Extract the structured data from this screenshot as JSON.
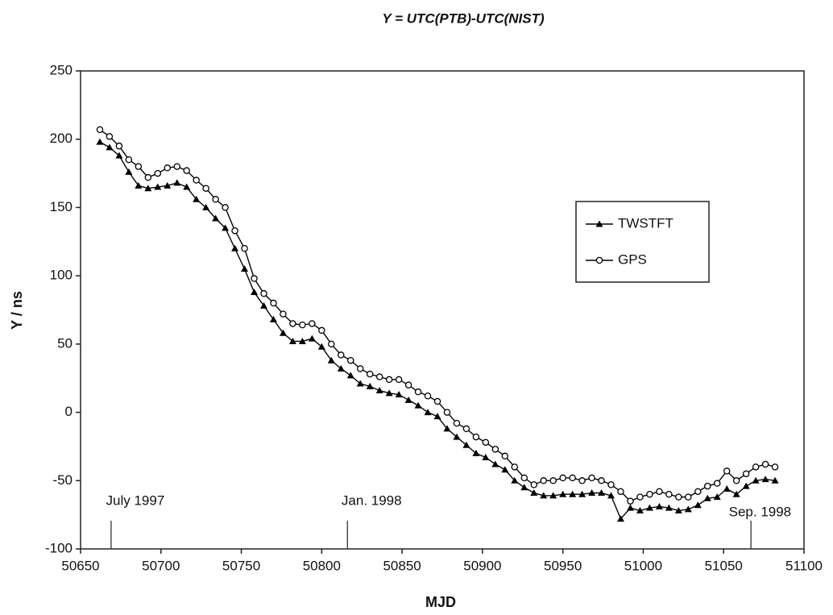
{
  "chart_data": {
    "type": "line",
    "title": "Y = UTC(PTB)-UTC(NIST)",
    "xlabel": "MJD",
    "ylabel": "Y / ns",
    "xlim": [
      50650,
      51100
    ],
    "xticks": [
      50650,
      50700,
      50750,
      50800,
      50850,
      50900,
      50950,
      51000,
      51050,
      51100
    ],
    "ylim": [
      -100,
      250
    ],
    "yticks": [
      -100,
      -50,
      0,
      50,
      100,
      150,
      200,
      250
    ],
    "legend": "right",
    "x": [
      50662,
      50668,
      50674,
      50680,
      50686,
      50692,
      50698,
      50704,
      50710,
      50716,
      50722,
      50728,
      50734,
      50740,
      50746,
      50752,
      50758,
      50764,
      50770,
      50776,
      50782,
      50788,
      50794,
      50800,
      50806,
      50812,
      50818,
      50824,
      50830,
      50836,
      50842,
      50848,
      50854,
      50860,
      50866,
      50872,
      50878,
      50884,
      50890,
      50896,
      50902,
      50908,
      50914,
      50920,
      50926,
      50932,
      50938,
      50944,
      50950,
      50956,
      50962,
      50968,
      50974,
      50980,
      50986,
      50992,
      50998,
      51004,
      51010,
      51016,
      51022,
      51028,
      51034,
      51040,
      51046,
      51052,
      51058,
      51064,
      51070,
      51076,
      51082
    ],
    "series": [
      {
        "name": "TWSTFT",
        "color": "#000000",
        "marker": "filled-triangle",
        "values": [
          198,
          194,
          188,
          176,
          166,
          164,
          165,
          166,
          168,
          165,
          156,
          150,
          142,
          135,
          120,
          105,
          88,
          78,
          68,
          58,
          52,
          52,
          54,
          48,
          38,
          32,
          27,
          21,
          19,
          16,
          14,
          13,
          9,
          5,
          0,
          -3,
          -12,
          -18,
          -24,
          -30,
          -33,
          -38,
          -42,
          -50,
          -55,
          -59,
          -61,
          -61,
          -60,
          -60,
          -60,
          -59,
          -59,
          -61,
          -78,
          -70,
          -72,
          -70,
          -69,
          -70,
          -72,
          -71,
          -68,
          -63,
          -62,
          -56,
          -60,
          -54,
          -50,
          -49,
          -50
        ]
      },
      {
        "name": "GPS",
        "color": "#000000",
        "marker": "open-circle",
        "values": [
          207,
          202,
          195,
          185,
          180,
          172,
          175,
          179,
          180,
          177,
          170,
          164,
          156,
          150,
          133,
          120,
          98,
          87,
          80,
          72,
          65,
          64,
          65,
          60,
          50,
          42,
          38,
          32,
          28,
          26,
          24,
          24,
          20,
          15,
          12,
          8,
          0,
          -8,
          -12,
          -18,
          -22,
          -27,
          -32,
          -40,
          -48,
          -53,
          -50,
          -50,
          -48,
          -48,
          -50,
          -48,
          -50,
          -53,
          -58,
          -65,
          -62,
          -60,
          -58,
          -60,
          -62,
          -62,
          -58,
          -54,
          -52,
          -43,
          -50,
          -45,
          -40,
          -38,
          -40
        ]
      }
    ],
    "annotations": [
      {
        "text": "July 1997",
        "x": 50669
      },
      {
        "text": "Jan. 1998",
        "x": 50816
      },
      {
        "text": "Sep. 1998",
        "x": 51067
      }
    ]
  }
}
